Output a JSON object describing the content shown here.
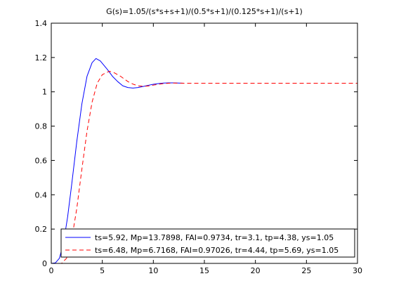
{
  "chart_data": {
    "type": "line",
    "title": "G(s)=1.05/(s*s+s+1)/(0.5*s+1)/(0.125*s+1)/(s+1)",
    "xlabel": "",
    "ylabel": "",
    "xlim": [
      0,
      30
    ],
    "ylim": [
      0,
      1.4
    ],
    "grid": false,
    "legend_position": "bottom-right",
    "x_ticks": [
      0,
      5,
      10,
      15,
      20,
      25,
      30
    ],
    "x_tick_labels": [
      "0",
      "5",
      "10",
      "15",
      "20",
      "25",
      "30"
    ],
    "y_ticks": [
      0,
      0.2,
      0.4,
      0.6,
      0.8,
      1,
      1.2,
      1.4
    ],
    "y_tick_labels": [
      "0",
      "0.2",
      "0.4",
      "0.6",
      "0.8",
      "1",
      "1.2",
      "1.4"
    ],
    "series": [
      {
        "name": "ts=5.92,  Mp=13.7898, FAI=0.9734, tr=3.1, tp=4.38, ys=1.05",
        "color": "#0000ff",
        "style": "solid",
        "points": [
          [
            0,
            0
          ],
          [
            0.4,
            0.003
          ],
          [
            0.8,
            0.03
          ],
          [
            1.2,
            0.12
          ],
          [
            1.6,
            0.27
          ],
          [
            2.0,
            0.46
          ],
          [
            2.5,
            0.71
          ],
          [
            3.0,
            0.93
          ],
          [
            3.5,
            1.09
          ],
          [
            4.0,
            1.17
          ],
          [
            4.38,
            1.194
          ],
          [
            4.8,
            1.18
          ],
          [
            5.5,
            1.13
          ],
          [
            6.0,
            1.09
          ],
          [
            6.5,
            1.06
          ],
          [
            7.0,
            1.035
          ],
          [
            7.5,
            1.025
          ],
          [
            8.0,
            1.022
          ],
          [
            8.5,
            1.025
          ],
          [
            9.0,
            1.031
          ],
          [
            9.5,
            1.038
          ],
          [
            10.0,
            1.044
          ],
          [
            10.5,
            1.048
          ],
          [
            11.0,
            1.051
          ],
          [
            11.5,
            1.052
          ],
          [
            12.0,
            1.052
          ],
          [
            12.5,
            1.051
          ],
          [
            13.0,
            1.05
          ]
        ]
      },
      {
        "name": "ts=6.48,  Mp=6.7168, FAI=0.97026, tr=4.44, tp=5.69, ys=1.05",
        "color": "#ff0000",
        "style": "dashed",
        "points": [
          [
            0,
            0
          ],
          [
            1.0,
            0.0
          ],
          [
            1.5,
            0.03
          ],
          [
            2.0,
            0.14
          ],
          [
            2.5,
            0.32
          ],
          [
            3.0,
            0.55
          ],
          [
            3.5,
            0.77
          ],
          [
            4.0,
            0.94
          ],
          [
            4.5,
            1.05
          ],
          [
            5.0,
            1.1
          ],
          [
            5.69,
            1.12
          ],
          [
            6.2,
            1.11
          ],
          [
            6.8,
            1.09
          ],
          [
            7.5,
            1.06
          ],
          [
            8.0,
            1.045
          ],
          [
            8.5,
            1.035
          ],
          [
            9.0,
            1.032
          ],
          [
            9.5,
            1.034
          ],
          [
            10.0,
            1.039
          ],
          [
            10.5,
            1.044
          ],
          [
            11.0,
            1.048
          ],
          [
            11.5,
            1.05
          ],
          [
            12.0,
            1.051
          ],
          [
            13.0,
            1.05
          ],
          [
            30.0,
            1.05
          ]
        ]
      }
    ]
  }
}
